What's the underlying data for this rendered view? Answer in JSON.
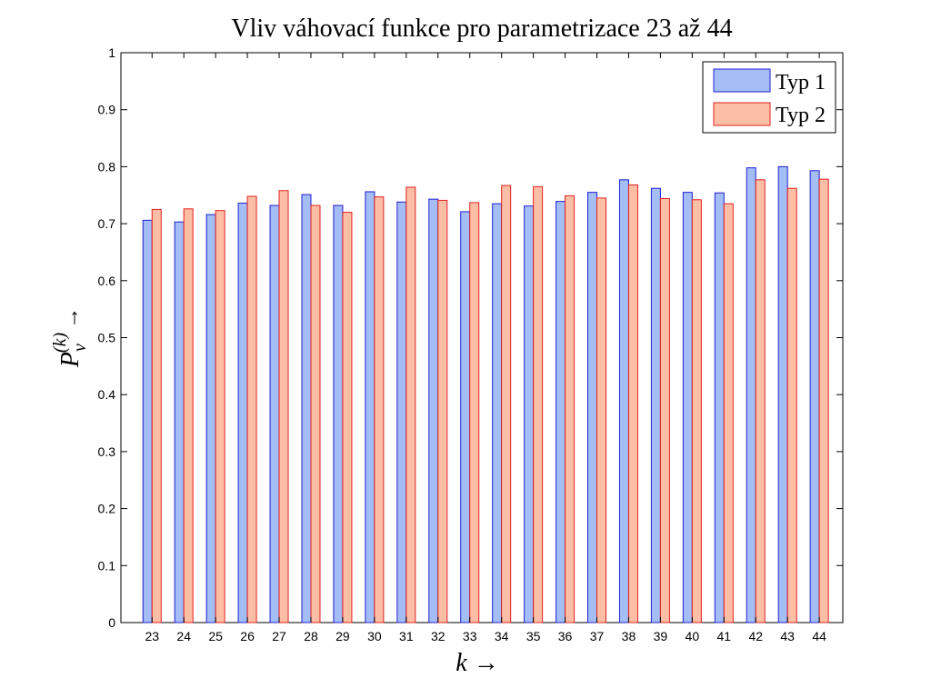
{
  "chart_data": {
    "type": "bar",
    "title": "Vliv váhovací funkce pro parametrizace 23 až 44",
    "xlabel": "k →",
    "ylabel": {
      "main": "P",
      "superscript": "(k)",
      "subscript": "v",
      "arrow": "→"
    },
    "categories": [
      "23",
      "24",
      "25",
      "26",
      "27",
      "28",
      "29",
      "30",
      "31",
      "32",
      "33",
      "34",
      "35",
      "36",
      "37",
      "38",
      "39",
      "40",
      "41",
      "42",
      "43",
      "44"
    ],
    "ylim": [
      0,
      1
    ],
    "yticks": [
      "0",
      "0.1",
      "0.2",
      "0.3",
      "0.4",
      "0.5",
      "0.6",
      "0.7",
      "0.8",
      "0.9",
      "1"
    ],
    "grid": false,
    "legend_position": "top-right",
    "series": [
      {
        "name": "Typ 1",
        "fill": "#a4bef5",
        "edge": "#1f1fd0",
        "values": [
          0.706,
          0.703,
          0.716,
          0.736,
          0.732,
          0.751,
          0.732,
          0.756,
          0.738,
          0.743,
          0.721,
          0.735,
          0.731,
          0.739,
          0.755,
          0.777,
          0.762,
          0.755,
          0.754,
          0.798,
          0.8,
          0.793
        ]
      },
      {
        "name": "Typ 2",
        "fill": "#fcbfa6",
        "edge": "#e0201f",
        "values": [
          0.725,
          0.726,
          0.723,
          0.748,
          0.758,
          0.732,
          0.72,
          0.747,
          0.764,
          0.741,
          0.737,
          0.767,
          0.765,
          0.749,
          0.745,
          0.768,
          0.744,
          0.742,
          0.735,
          0.777,
          0.762,
          0.778
        ]
      }
    ]
  }
}
